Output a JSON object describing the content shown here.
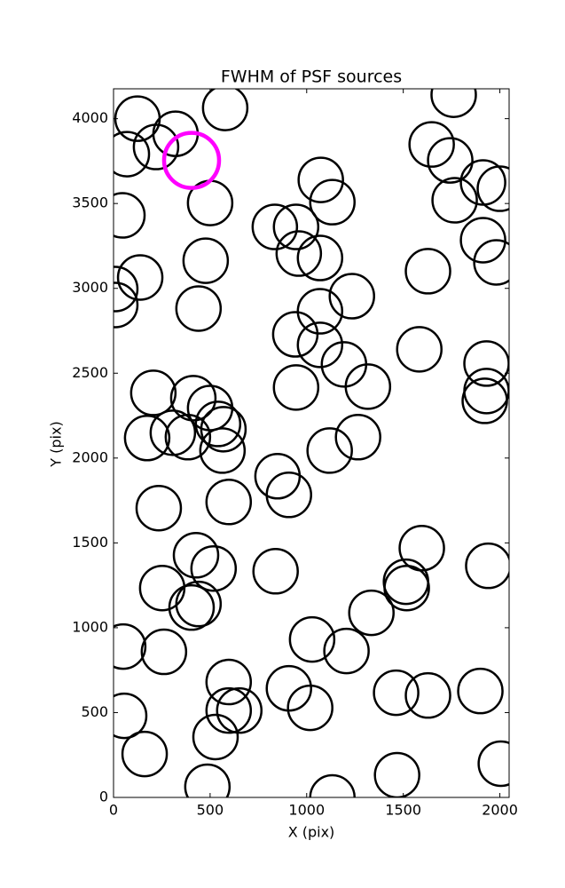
{
  "chart_data": {
    "type": "scatter",
    "title": "FWHM of PSF sources",
    "x_label": "X (pix)",
    "y_label": "Y (pix)",
    "xlim": [
      0,
      2048
    ],
    "ylim": [
      0,
      4176
    ],
    "xticks": [
      0,
      500,
      1000,
      1500,
      2000
    ],
    "yticks": [
      0,
      500,
      1000,
      1500,
      2000,
      2500,
      3000,
      3500,
      4000
    ],
    "series": [
      {
        "color": "#000000",
        "x": [
          124,
          69,
          220,
          321,
          578,
          46,
          500,
          477,
          138,
          9,
          9,
          440,
          835,
          945,
          959,
          1069,
          1073,
          1133,
          1761,
          1647,
          1743,
          1766,
          1913,
          2000,
          1913,
          1982,
          1628,
          1234,
          1069,
          941,
          1069,
          1193,
          1317,
          945,
          1583,
          1931,
          1931,
          1922,
          206,
          413,
          500,
          541,
          569,
          307,
          385,
          174,
          564,
          1266,
          1119,
          849,
          908,
          234,
          596,
          427,
          518,
          252,
          839,
          1596,
          1514,
          1518,
          1940,
          404,
          440,
          1335,
          50,
          261,
          1028,
          1206,
          596,
          908,
          1018,
          596,
          651,
          55,
          1463,
          1628,
          1899,
          528,
          161,
          486,
          1133,
          1468,
          2005
        ],
        "y": [
          4000,
          3791,
          3833,
          3911,
          4063,
          3430,
          3503,
          3163,
          3064,
          2996,
          2902,
          2881,
          3362,
          3362,
          3205,
          3179,
          3639,
          3508,
          4141,
          3848,
          3754,
          3519,
          3624,
          3587,
          3284,
          3153,
          3101,
          2954,
          2865,
          2729,
          2667,
          2552,
          2421,
          2416,
          2641,
          2557,
          2395,
          2337,
          2384,
          2353,
          2295,
          2201,
          2170,
          2149,
          2123,
          2118,
          2044,
          2123,
          2044,
          1893,
          1783,
          1705,
          1741,
          1427,
          1349,
          1234,
          1333,
          1469,
          1271,
          1234,
          1365,
          1119,
          1140,
          1088,
          889,
          858,
          931,
          863,
          680,
          643,
          528,
          512,
          512,
          481,
          617,
          601,
          627,
          356,
          256,
          63,
          0,
          131,
          199
        ]
      },
      {
        "color": "#ff00ff",
        "x": [
          404
        ],
        "y": [
          3754
        ]
      }
    ]
  }
}
